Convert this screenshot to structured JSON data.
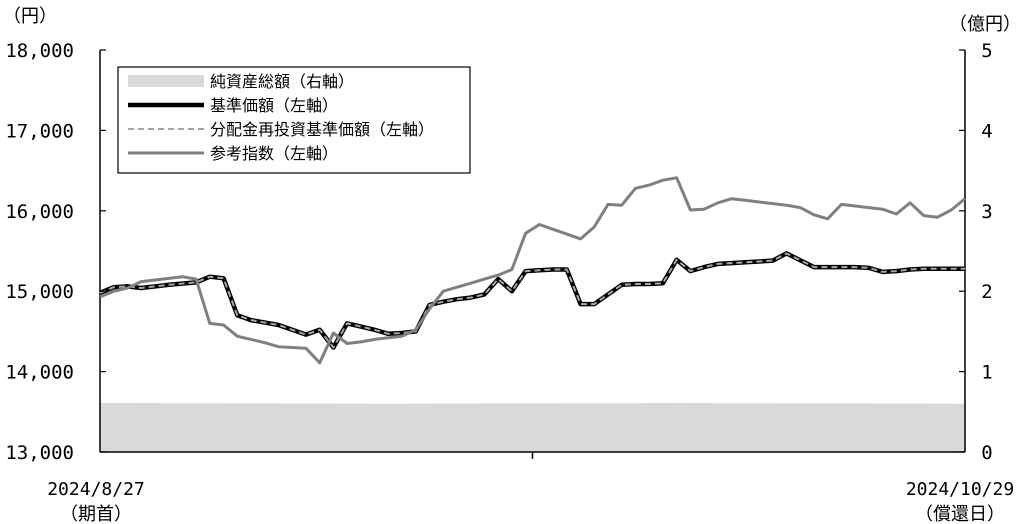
{
  "chart_data": {
    "type": "line",
    "left_axis": {
      "unit_label": "（円）",
      "ylim": [
        13000,
        18000
      ],
      "ticks": [
        "13,000",
        "14,000",
        "15,000",
        "16,000",
        "17,000",
        "18,000"
      ],
      "tick_values": [
        13000,
        14000,
        15000,
        16000,
        17000,
        18000
      ]
    },
    "right_axis": {
      "unit_label": "（億円）",
      "ylim": [
        0,
        5
      ],
      "ticks": [
        "0",
        "1",
        "2",
        "3",
        "4",
        "5"
      ],
      "tick_values": [
        0,
        1,
        2,
        3,
        4,
        5
      ]
    },
    "x_axis": {
      "start_label": "2024/8/27",
      "start_sublabel": "（期首）",
      "end_label": "2024/10/29",
      "end_sublabel": "（償還日）",
      "n_points": 64
    },
    "legend": {
      "placement": "top-left",
      "entries": [
        {
          "name": "純資産総額（右軸）",
          "style": "area",
          "color": "#d9d9d9"
        },
        {
          "name": "基準価額（左軸）",
          "style": "solid-thick",
          "color": "#000000"
        },
        {
          "name": "分配金再投資基準価額（左軸）",
          "style": "dashed",
          "color": "#a6a6a6"
        },
        {
          "name": "参考指数（左軸）",
          "style": "solid",
          "color": "#808080"
        }
      ]
    },
    "series": [
      {
        "name": "純資産総額（右軸）",
        "axis": "right",
        "kind": "area",
        "color": "#d9d9d9",
        "x": [
          0,
          21,
          42,
          63
        ],
        "values": [
          0.61,
          0.6,
          0.61,
          0.6
        ]
      },
      {
        "name": "基準価額（左軸）",
        "axis": "left",
        "kind": "line",
        "color": "#000000",
        "x": [
          0,
          1,
          2,
          3,
          5,
          7,
          8,
          9,
          10,
          11,
          13,
          14,
          15,
          16,
          17,
          18,
          19,
          20,
          21,
          22,
          23,
          24,
          25,
          26,
          27,
          28,
          29,
          30,
          31,
          32,
          33,
          34,
          35,
          36,
          37,
          38,
          39,
          40,
          41,
          42,
          43,
          44,
          45,
          46,
          47,
          48,
          49,
          50,
          52,
          53,
          54,
          55,
          56,
          57,
          58,
          59,
          60,
          61,
          62,
          63
        ],
        "values": [
          14980,
          15050,
          15060,
          15040,
          15080,
          15110,
          15180,
          15160,
          14700,
          14640,
          14580,
          14520,
          14460,
          14520,
          14300,
          14600,
          14560,
          14520,
          14470,
          14480,
          14500,
          14830,
          14870,
          14900,
          14920,
          14960,
          15150,
          15000,
          15250,
          15260,
          15270,
          15270,
          14840,
          14840,
          14960,
          15080,
          15090,
          15090,
          15100,
          15390,
          15250,
          15300,
          15340,
          15350,
          15360,
          15370,
          15380,
          15470,
          15300,
          15300,
          15300,
          15300,
          15290,
          15240,
          15250,
          15270,
          15280,
          15280,
          15280,
          15280
        ]
      },
      {
        "name": "分配金再投資基準価額（左軸）",
        "axis": "left",
        "kind": "line",
        "color": "#a6a6a6",
        "x": [
          0,
          1,
          2,
          3,
          5,
          7,
          8,
          9,
          10,
          11,
          13,
          14,
          15,
          16,
          17,
          18,
          19,
          20,
          21,
          22,
          23,
          24,
          25,
          26,
          27,
          28,
          29,
          30,
          31,
          32,
          33,
          34,
          35,
          36,
          37,
          38,
          39,
          40,
          41,
          42,
          43,
          44,
          45,
          46,
          47,
          48,
          49,
          50,
          52,
          53,
          54,
          55,
          56,
          57,
          58,
          59,
          60,
          61,
          62,
          63
        ],
        "values": [
          14980,
          15050,
          15060,
          15040,
          15080,
          15110,
          15180,
          15160,
          14700,
          14640,
          14580,
          14520,
          14460,
          14520,
          14300,
          14600,
          14560,
          14520,
          14470,
          14480,
          14500,
          14830,
          14870,
          14900,
          14920,
          14960,
          15150,
          15000,
          15250,
          15260,
          15270,
          15270,
          14840,
          14840,
          14960,
          15080,
          15090,
          15090,
          15100,
          15390,
          15250,
          15300,
          15340,
          15350,
          15360,
          15370,
          15380,
          15470,
          15300,
          15300,
          15300,
          15300,
          15290,
          15240,
          15250,
          15270,
          15280,
          15280,
          15280,
          15280
        ]
      },
      {
        "name": "参考指数（左軸）",
        "axis": "left",
        "kind": "line",
        "color": "#808080",
        "x": [
          0,
          1,
          2,
          3,
          6,
          7,
          8,
          9,
          10,
          11,
          12,
          13,
          15,
          16,
          17,
          18,
          19,
          20,
          21,
          22,
          23,
          24,
          25,
          26,
          27,
          28,
          29,
          30,
          31,
          32,
          33,
          34,
          35,
          36,
          37,
          38,
          39,
          40,
          41,
          42,
          43,
          44,
          45,
          46,
          47,
          48,
          49,
          50,
          51,
          52,
          53,
          54,
          55,
          56,
          57,
          58,
          59,
          60,
          61,
          62,
          63
        ],
        "values": [
          14930,
          15000,
          15040,
          15120,
          15180,
          15150,
          14600,
          14580,
          14440,
          14400,
          14360,
          14310,
          14290,
          14110,
          14480,
          14350,
          14370,
          14400,
          14420,
          14440,
          14520,
          14780,
          15000,
          15050,
          15100,
          15150,
          15200,
          15270,
          15720,
          15830,
          15770,
          15710,
          15650,
          15800,
          16080,
          16070,
          16280,
          16320,
          16380,
          16410,
          16010,
          16020,
          16100,
          16150,
          16130,
          16110,
          16090,
          16070,
          16040,
          15950,
          15900,
          16080,
          16060,
          16040,
          16020,
          15960,
          16100,
          15940,
          15920,
          16010,
          16150
        ]
      }
    ]
  }
}
